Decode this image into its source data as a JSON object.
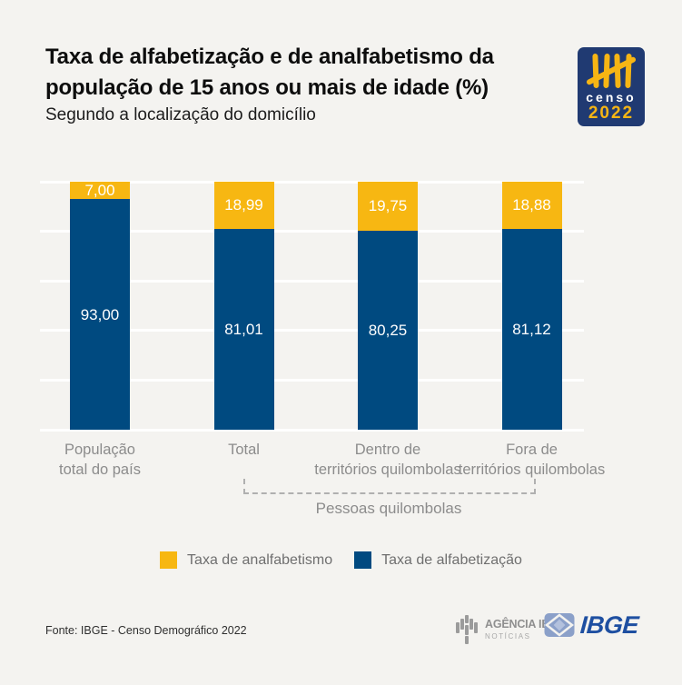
{
  "header": {
    "title": "Taxa de alfabetização e de analfabetismo da população de 15 anos ou mais de idade (%)",
    "subtitle": "Segundo a localização do domicílio"
  },
  "censo_logo": {
    "name": "censo",
    "year": "2022",
    "bg_color": "#203a72",
    "accent_color": "#f6b514"
  },
  "chart_data": {
    "type": "bar",
    "stacked": true,
    "unit": "%",
    "categories": [
      [
        "População",
        "total do país"
      ],
      [
        "Total"
      ],
      [
        "Dentro de",
        "territórios quilombolas"
      ],
      [
        "Fora de",
        "territórios quilombolas"
      ]
    ],
    "series": [
      {
        "name": "Taxa de analfabetismo",
        "color": "#f7b712",
        "values": [
          7.0,
          18.99,
          19.75,
          18.88
        ]
      },
      {
        "name": "Taxa de alfabetização",
        "color": "#004a80",
        "values": [
          93.0,
          81.01,
          80.25,
          81.12
        ]
      }
    ],
    "ylim": [
      0,
      100
    ],
    "gridlines": [
      0,
      20,
      40,
      60,
      80,
      100
    ],
    "grid_color": "#ffffff",
    "legend_position": "bottom",
    "group_annotation": {
      "label": "Pessoas quilombolas",
      "from_category": 1,
      "to_category": 3
    }
  },
  "legend": {
    "items": [
      {
        "label": "Taxa de analfabetismo",
        "color": "#f7b712"
      },
      {
        "label": "Taxa de alfabetização",
        "color": "#004a80"
      }
    ]
  },
  "footer": {
    "source": "Fonte: IBGE - Censo Demográfico 2022",
    "agency": {
      "title": "AGÊNCIA IBGE",
      "subtitle": "NOTÍCIAS"
    },
    "ibge": "IBGE"
  }
}
